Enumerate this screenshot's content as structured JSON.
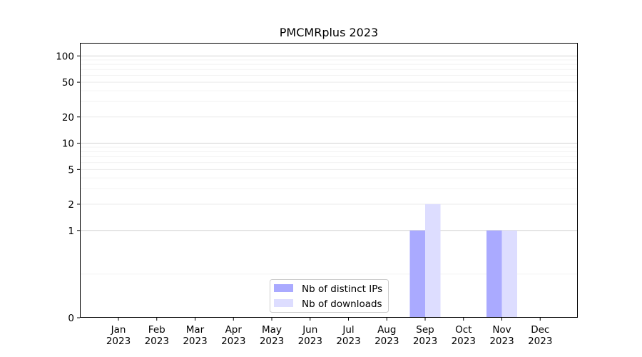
{
  "chart_data": {
    "type": "bar",
    "title": "PMCMRplus 2023",
    "xlabel": "",
    "ylabel": "",
    "y_scale": "symlog",
    "y_ticks": [
      0,
      1,
      2,
      5,
      10,
      20,
      50,
      100
    ],
    "categories": [
      [
        "Jan",
        "2023"
      ],
      [
        "Feb",
        "2023"
      ],
      [
        "Mar",
        "2023"
      ],
      [
        "Apr",
        "2023"
      ],
      [
        "May",
        "2023"
      ],
      [
        "Jun",
        "2023"
      ],
      [
        "Jul",
        "2023"
      ],
      [
        "Aug",
        "2023"
      ],
      [
        "Sep",
        "2023"
      ],
      [
        "Oct",
        "2023"
      ],
      [
        "Nov",
        "2023"
      ],
      [
        "Dec",
        "2023"
      ]
    ],
    "series": [
      {
        "name": "Nb of distinct IPs",
        "color": "#aaaaff",
        "values": [
          0,
          0,
          0,
          0,
          0,
          0,
          0,
          0,
          1,
          0,
          1,
          0
        ]
      },
      {
        "name": "Nb of downloads",
        "color": "#ddddff",
        "values": [
          0,
          0,
          0,
          0,
          0,
          0,
          0,
          0,
          2,
          0,
          1,
          0
        ]
      }
    ],
    "legend_position": "bottom-center",
    "grid": true
  }
}
